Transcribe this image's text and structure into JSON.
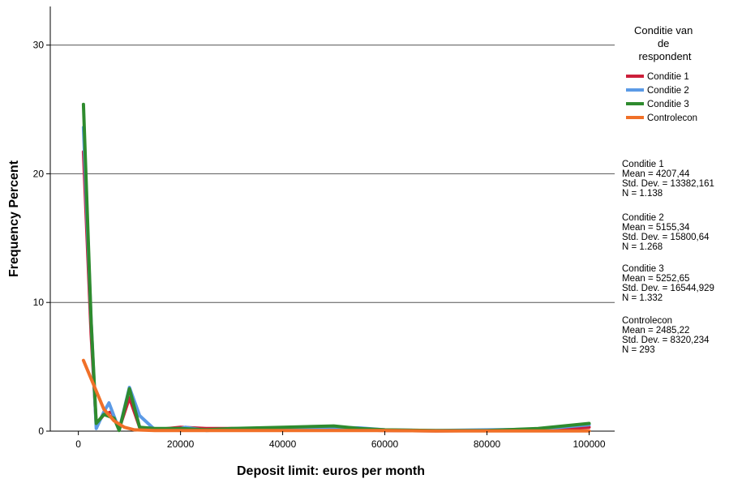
{
  "chart_data": {
    "type": "line",
    "xlabel": "Deposit limit: euros per month",
    "ylabel": "Frequency Percent",
    "xlim": [
      -5500,
      105000
    ],
    "ylim": [
      0,
      33
    ],
    "x_ticks": [
      0,
      20000,
      40000,
      60000,
      80000,
      100000
    ],
    "y_ticks": [
      0,
      10,
      20,
      30
    ],
    "grid": "horizontal",
    "legend": {
      "title_lines": [
        "Conditie van",
        "de",
        "respondent"
      ],
      "position": "right"
    },
    "series": [
      {
        "name": "Conditie 1",
        "color": "#cc1f3a",
        "points": [
          [
            1000,
            21.7
          ],
          [
            2500,
            7.5
          ],
          [
            3500,
            0.5
          ],
          [
            5000,
            1.3
          ],
          [
            6500,
            1.5
          ],
          [
            8000,
            0.2
          ],
          [
            10000,
            2.6
          ],
          [
            12000,
            0.3
          ],
          [
            15000,
            0.1
          ],
          [
            20000,
            0.3
          ],
          [
            25000,
            0.2
          ],
          [
            30000,
            0.2
          ],
          [
            40000,
            0.1
          ],
          [
            50000,
            0.15
          ],
          [
            60000,
            0.05
          ],
          [
            70000,
            0.02
          ],
          [
            80000,
            0.05
          ],
          [
            90000,
            0.05
          ],
          [
            100000,
            0.3
          ]
        ]
      },
      {
        "name": "Conditie 2",
        "color": "#5b9ae6",
        "points": [
          [
            1000,
            23.6
          ],
          [
            2500,
            8.5
          ],
          [
            3500,
            0.2
          ],
          [
            5000,
            1.5
          ],
          [
            6000,
            2.2
          ],
          [
            8000,
            0.1
          ],
          [
            10000,
            3.4
          ],
          [
            12000,
            1.2
          ],
          [
            15000,
            0.1
          ],
          [
            20000,
            0.2
          ],
          [
            21000,
            0.3
          ],
          [
            25000,
            0.05
          ],
          [
            30000,
            0.15
          ],
          [
            40000,
            0.2
          ],
          [
            50000,
            0.3
          ],
          [
            55000,
            0.25
          ],
          [
            60000,
            0.1
          ],
          [
            70000,
            0.05
          ],
          [
            80000,
            0.1
          ],
          [
            90000,
            0.15
          ],
          [
            100000,
            0.5
          ]
        ]
      },
      {
        "name": "Conditie 3",
        "color": "#2e8b2e",
        "points": [
          [
            1000,
            25.4
          ],
          [
            2500,
            8.5
          ],
          [
            3500,
            0.6
          ],
          [
            5000,
            1.3
          ],
          [
            7000,
            1.0
          ],
          [
            8000,
            0.05
          ],
          [
            10000,
            3.3
          ],
          [
            12000,
            0.3
          ],
          [
            15000,
            0.2
          ],
          [
            20000,
            0.2
          ],
          [
            25000,
            0.1
          ],
          [
            30000,
            0.2
          ],
          [
            40000,
            0.3
          ],
          [
            50000,
            0.4
          ],
          [
            55000,
            0.2
          ],
          [
            60000,
            0.1
          ],
          [
            70000,
            0.05
          ],
          [
            80000,
            0.05
          ],
          [
            90000,
            0.2
          ],
          [
            100000,
            0.6
          ]
        ]
      },
      {
        "name": "Controlecon",
        "color": "#f07028",
        "points": [
          [
            1000,
            5.5
          ],
          [
            3000,
            3.6
          ],
          [
            5000,
            1.7
          ],
          [
            7000,
            0.8
          ],
          [
            9000,
            0.3
          ],
          [
            11000,
            0.1
          ],
          [
            15000,
            0.05
          ],
          [
            20000,
            0.05
          ],
          [
            30000,
            0.05
          ],
          [
            40000,
            0.05
          ],
          [
            50000,
            0.05
          ],
          [
            60000,
            0.05
          ],
          [
            70000,
            0.02
          ],
          [
            80000,
            0.02
          ],
          [
            90000,
            0.02
          ],
          [
            100000,
            0.02
          ]
        ]
      }
    ],
    "stats": [
      {
        "title": "Conditie 1",
        "mean": "Mean = 4207,44",
        "sd": "Std. Dev. = 13382,161",
        "n": "N = 1.138"
      },
      {
        "title": "Conditie 2",
        "mean": "Mean = 5155,34",
        "sd": "Std. Dev. = 15800,64",
        "n": "N = 1.268"
      },
      {
        "title": "Conditie 3",
        "mean": "Mean = 5252,65",
        "sd": "Std. Dev. = 16544,929",
        "n": "N = 1.332"
      },
      {
        "title": "Controlecon",
        "mean": "Mean = 2485,22",
        "sd": "Std. Dev. = 8320,234",
        "n": "N = 293"
      }
    ]
  }
}
